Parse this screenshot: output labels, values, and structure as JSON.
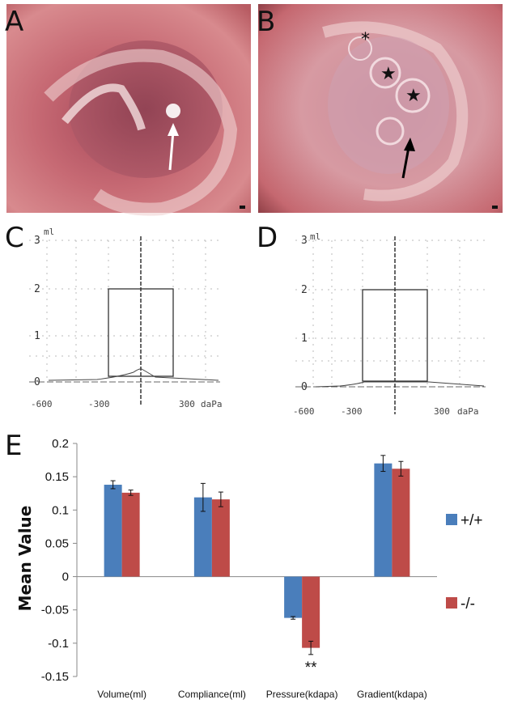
{
  "panels": {
    "a": "A",
    "b": "B",
    "c": "C",
    "d": "D",
    "e": "E"
  },
  "photo_b_marks": {
    "asterisk": "*",
    "star_1": "★",
    "star_2": "★"
  },
  "tympanograms": {
    "c": {
      "unit": "ml",
      "y_ticks": [
        "3",
        "2",
        "1",
        "0"
      ],
      "x_ticks": [
        "-600",
        "-300",
        "300"
      ],
      "x_unit": "daPa"
    },
    "d": {
      "unit": "ml",
      "y_ticks": [
        "3",
        "2",
        "1",
        "0"
      ],
      "x_ticks": [
        "-600",
        "-300",
        "300"
      ],
      "x_unit": "daPa"
    }
  },
  "colors": {
    "wildtype": "#4a7ebb",
    "knockout": "#be4b48",
    "photo_bg": "#c5676f"
  },
  "chart_data": {
    "type": "bar",
    "title": "",
    "xlabel": "",
    "ylabel": "Mean Value",
    "ylim": [
      -0.15,
      0.2
    ],
    "y_ticks": [
      "0.2",
      "0.15",
      "0.1",
      "0.05",
      "0",
      "-0.05",
      "-0.1",
      "-0.15"
    ],
    "categories": [
      "Volume(ml)",
      "Compliance(ml)",
      "Pressure(kdapa)",
      "Gradient(kdapa)"
    ],
    "series": [
      {
        "name": "+/+",
        "values": [
          0.138,
          0.119,
          -0.062,
          0.17
        ],
        "errors": [
          0.006,
          0.021,
          0.002,
          0.012
        ]
      },
      {
        "name": "-/-",
        "values": [
          0.126,
          0.116,
          -0.107,
          0.162
        ],
        "errors": [
          0.004,
          0.011,
          0.01,
          0.011
        ]
      }
    ],
    "annotation": {
      "category": "Pressure(kdapa)",
      "text": "**"
    },
    "legend_position": "right"
  }
}
